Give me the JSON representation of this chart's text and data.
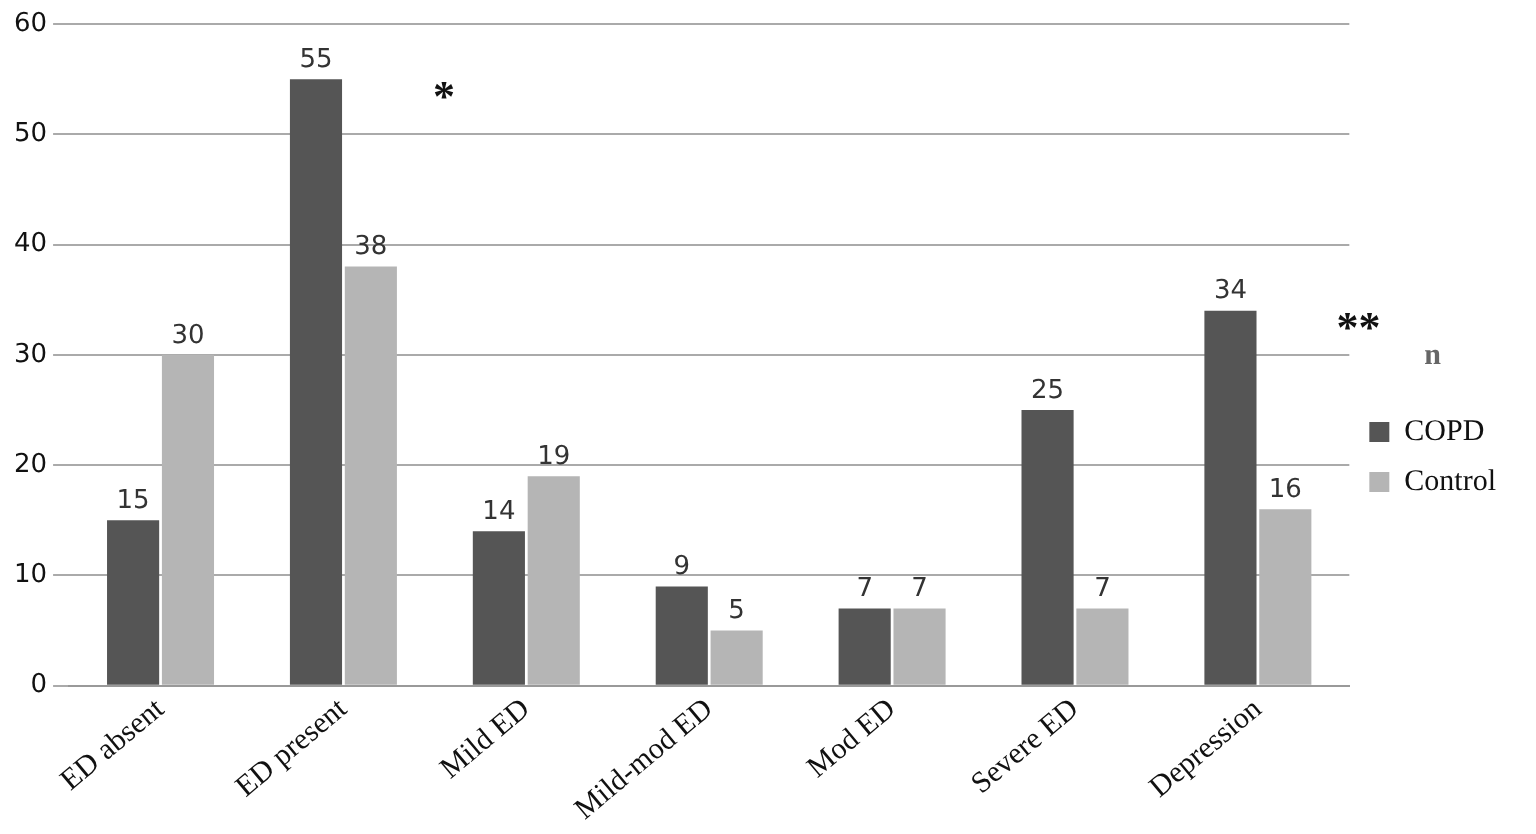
{
  "chart_data": {
    "type": "bar",
    "categories": [
      "ED absent",
      "ED present",
      "Mild ED",
      "Mild-mod ED",
      "Mod ED",
      "Severe ED",
      "Depression"
    ],
    "series": [
      {
        "name": "COPD",
        "color": "#555555",
        "values": [
          15,
          55,
          14,
          9,
          7,
          25,
          34
        ]
      },
      {
        "name": "Control",
        "color": "#b5b5b5",
        "values": [
          30,
          38,
          19,
          5,
          7,
          7,
          16
        ]
      }
    ],
    "ylim": [
      0,
      60
    ],
    "yticks": [
      0,
      10,
      20,
      30,
      40,
      50,
      60
    ],
    "grid": "y",
    "legend": "right",
    "legend_title": "n",
    "data_labels": true,
    "annotations": [
      {
        "text": "*",
        "x": "ED present",
        "y": 55
      },
      {
        "text": "**",
        "x": "Depression",
        "y": 34
      }
    ]
  }
}
